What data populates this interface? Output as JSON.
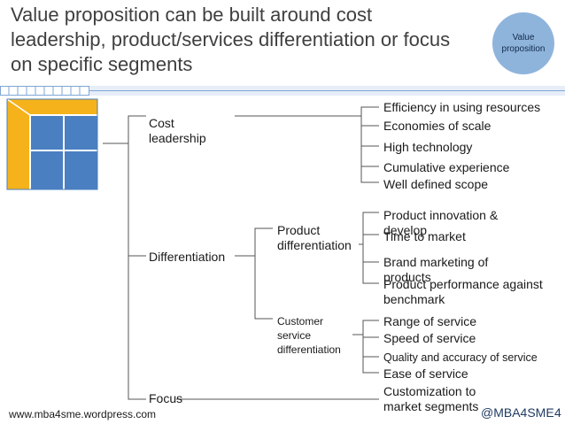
{
  "title": "Value proposition can be built around cost leadership, product/services differentiation or focus on specific segments",
  "badge": "Value proposition",
  "level1": {
    "cost": "Cost leadership",
    "differentiation": "Differentiation",
    "focus": "Focus"
  },
  "level2": {
    "product": "Product differentiation",
    "customer": "Customer service differentiation"
  },
  "cost_items": [
    "Efficiency in using resources",
    "Economies of scale",
    "High technology",
    "Cumulative experience",
    "Well defined scope"
  ],
  "product_items": [
    "Product innovation & develop",
    "Time to market",
    "Brand marketing of products",
    "Product performance against benchmark"
  ],
  "customer_items": [
    "Range of service",
    "Speed of service",
    "Quality and accuracy of service",
    "Ease of service"
  ],
  "focus_items": [
    "Customization to market segments"
  ],
  "footer": {
    "left": "www.mba4sme.wordpress.com",
    "right": "@MBA4SME",
    "page": "4"
  },
  "colors": {
    "accent": "#f5b21b",
    "grid": "#4a7fc1",
    "badge": "#8fb4dc",
    "divider": "#4e81bd"
  }
}
